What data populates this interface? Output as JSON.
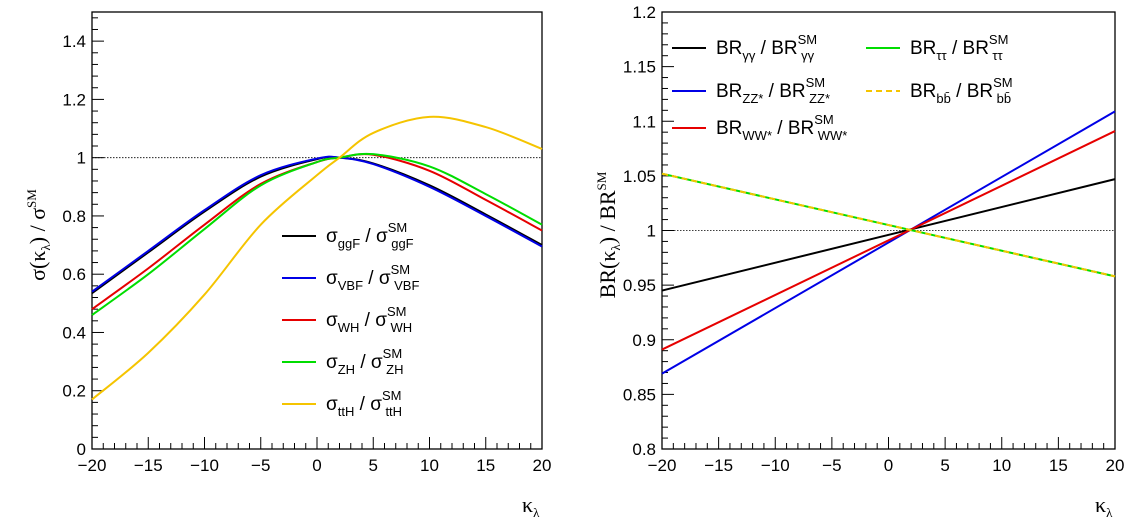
{
  "chart_data": [
    {
      "type": "line",
      "ylabel": "σ(κλ) / σSM",
      "xlabel": "κλ",
      "xlim": [
        -20,
        20
      ],
      "ylim": [
        0,
        1.5
      ],
      "x_ticks": [
        "−20",
        "−15",
        "−10",
        "−5",
        "0",
        "5",
        "10",
        "15",
        "20"
      ],
      "y_ticks": [
        "0",
        "0.2",
        "0.4",
        "0.6",
        "0.8",
        "1",
        "1.2",
        "1.4"
      ],
      "reference_line": 1,
      "legend_position": "center-right",
      "x": [
        -20,
        -15,
        -10,
        -5,
        0,
        2,
        5,
        10,
        15,
        20
      ],
      "series": [
        {
          "name": "σggF / σSM ggF",
          "color": "#000000",
          "values": [
            0.535,
            0.675,
            0.815,
            0.935,
            0.995,
            1.0,
            0.98,
            0.905,
            0.805,
            0.7
          ]
        },
        {
          "name": "σVBF / σSM VBF",
          "color": "#0000e6",
          "values": [
            0.54,
            0.68,
            0.82,
            0.94,
            0.997,
            1.0,
            0.978,
            0.9,
            0.8,
            0.695
          ]
        },
        {
          "name": "σWH / σSM WH",
          "color": "#e60000",
          "values": [
            0.48,
            0.62,
            0.77,
            0.91,
            0.985,
            1.0,
            1.01,
            0.955,
            0.855,
            0.75
          ]
        },
        {
          "name": "σZH / σSM ZH",
          "color": "#00dd00",
          "values": [
            0.46,
            0.6,
            0.755,
            0.905,
            0.985,
            1.0,
            1.012,
            0.97,
            0.875,
            0.77
          ]
        },
        {
          "name": "σttH / σSM ttH",
          "color": "#f5c400",
          "values": [
            0.17,
            0.33,
            0.53,
            0.77,
            0.94,
            1.0,
            1.085,
            1.14,
            1.105,
            1.03
          ]
        }
      ],
      "legend": [
        {
          "main": "σ",
          "sub": "ggF",
          "sep": " / ",
          "main2": "σ",
          "sup2": "SM",
          "sub2": "ggF"
        },
        {
          "main": "σ",
          "sub": "VBF",
          "sep": " / ",
          "main2": "σ",
          "sup2": "SM",
          "sub2": "VBF"
        },
        {
          "main": "σ",
          "sub": "WH",
          "sep": " / ",
          "main2": "σ",
          "sup2": "SM",
          "sub2": "WH"
        },
        {
          "main": "σ",
          "sub": "ZH",
          "sep": " / ",
          "main2": "σ",
          "sup2": "SM",
          "sub2": "ZH"
        },
        {
          "main": "σ",
          "sub": "ttH",
          "sep": " / ",
          "main2": "σ",
          "sup2": "SM",
          "sub2": "ttH"
        }
      ]
    },
    {
      "type": "line",
      "ylabel": "BR(κλ) / BRSM",
      "xlabel": "κλ",
      "xlim": [
        -20,
        20
      ],
      "ylim": [
        0.8,
        1.2
      ],
      "x_ticks": [
        "−20",
        "−15",
        "−10",
        "−5",
        "0",
        "5",
        "10",
        "15",
        "20"
      ],
      "y_ticks": [
        "0.8",
        "0.85",
        "0.9",
        "0.95",
        "1",
        "1.05",
        "1.1",
        "1.15",
        "1.2"
      ],
      "reference_line": 1,
      "legend_position": "top-left",
      "x": [
        -20,
        20
      ],
      "series": [
        {
          "name": "BRγγ / BRSM γγ",
          "color": "#000000",
          "values": [
            0.945,
            1.047
          ]
        },
        {
          "name": "BRZZ* / BRSM ZZ*",
          "color": "#0000e6",
          "values": [
            0.869,
            1.109
          ]
        },
        {
          "name": "BRWW* / BRSM WW*",
          "color": "#e60000",
          "values": [
            0.891,
            1.091
          ]
        },
        {
          "name": "BRττ / BRSM ττ",
          "color": "#00dd00",
          "values": [
            1.052,
            0.958
          ]
        },
        {
          "name": "BRbb̄ / BRSM bb̄",
          "color": "#f5c400",
          "dashed": true,
          "values": [
            1.052,
            0.958
          ]
        }
      ],
      "legend": [
        {
          "main": "BR",
          "sub": "γγ",
          "sep": " / ",
          "main2": "BR",
          "sup2": "SM",
          "sub2": "γγ"
        },
        {
          "main": "BR",
          "sub": "ZZ*",
          "sep": " / ",
          "main2": "BR",
          "sup2": "SM",
          "sub2": "ZZ*"
        },
        {
          "main": "BR",
          "sub": "WW*",
          "sep": " / ",
          "main2": "BR",
          "sup2": "SM",
          "sub2": "WW*"
        },
        {
          "main": "BR",
          "sub": "ττ",
          "sep": " / ",
          "main2": "BR",
          "sup2": "SM",
          "sub2": "ττ"
        },
        {
          "main": "BR",
          "sub": "bb̄",
          "sep": " / ",
          "main2": "BR",
          "sup2": "SM",
          "sub2": "bb̄"
        }
      ]
    }
  ]
}
